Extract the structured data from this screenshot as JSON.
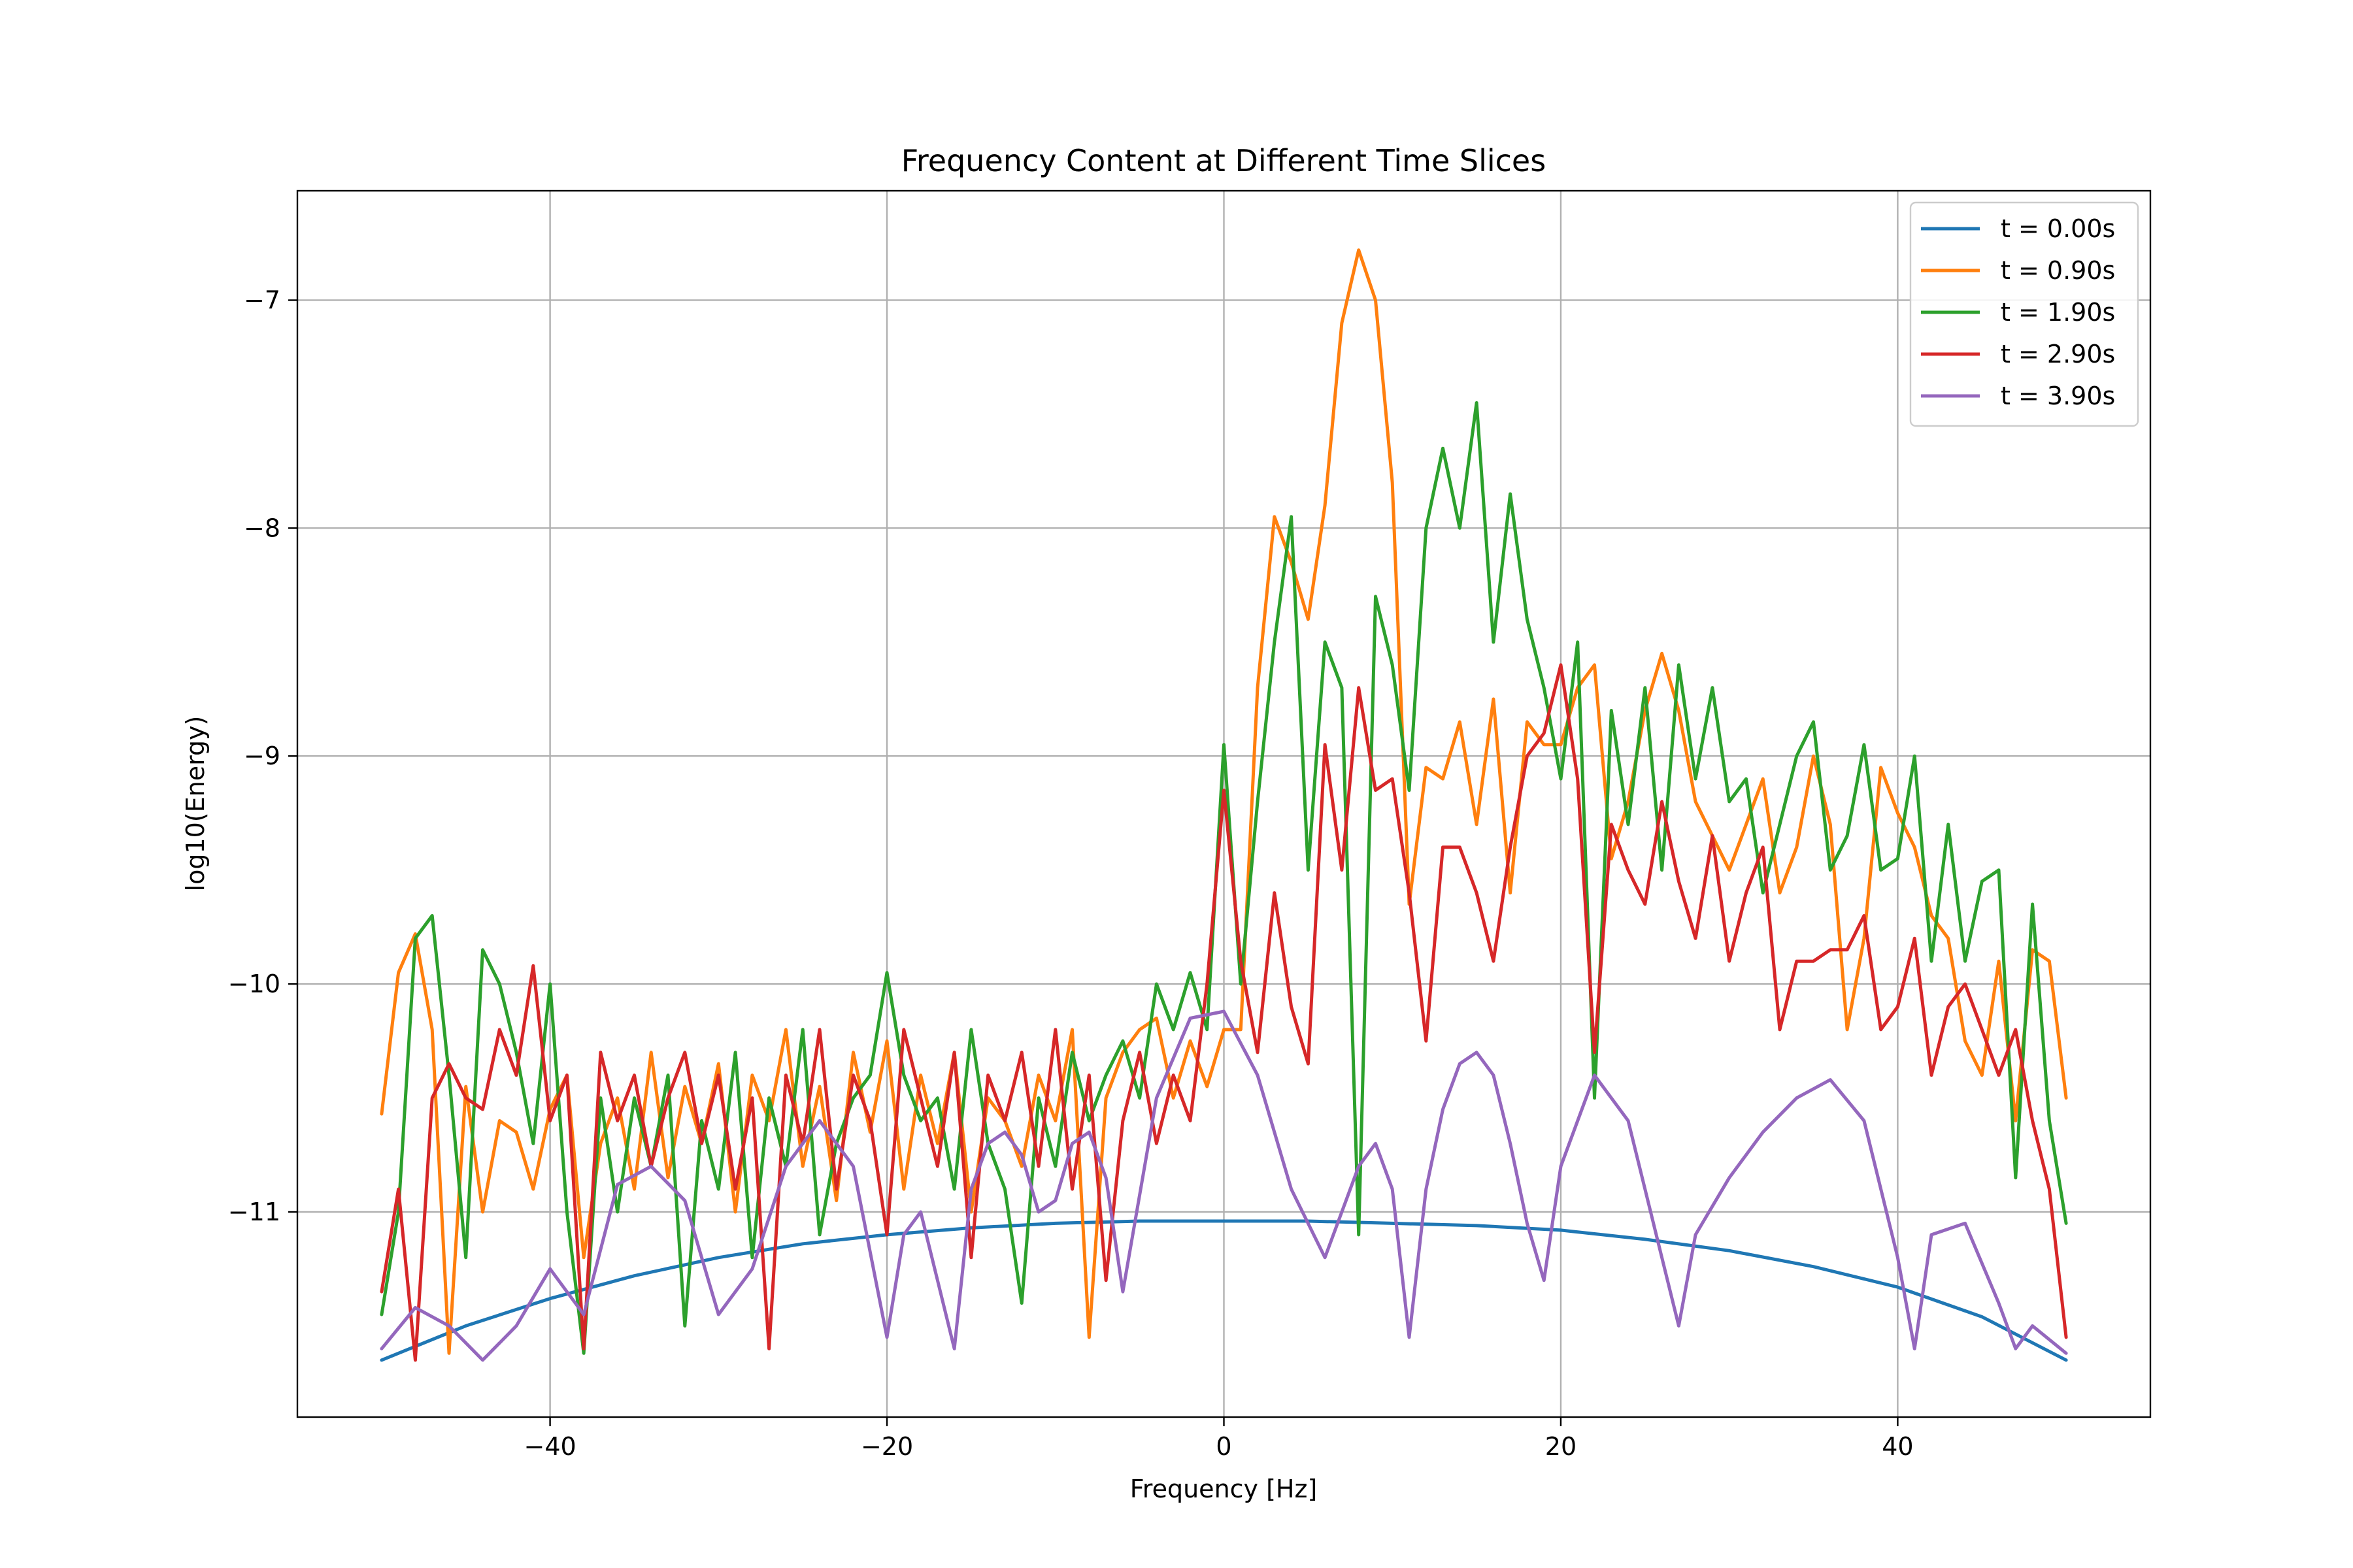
{
  "chart_data": {
    "type": "line",
    "title": "Frequency Content at Different Time Slices",
    "xlabel": "Frequency [Hz]",
    "ylabel": "log10(Energy)",
    "xlim": [
      -55,
      55
    ],
    "ylim": [
      -11.9,
      -6.52
    ],
    "xticks": [
      -40,
      -20,
      0,
      20,
      40
    ],
    "yticks": [
      -11,
      -10,
      -9,
      -8,
      -7
    ],
    "xtick_labels": [
      "−40",
      "−20",
      "0",
      "20",
      "40"
    ],
    "ytick_labels": [
      "−11",
      "−10",
      "−9",
      "−8",
      "−7"
    ],
    "grid": true,
    "legend_position": "top-right",
    "series": [
      {
        "name": "t = 0.00s",
        "color": "#1f77b4",
        "x": [
          -50,
          -45,
          -40,
          -35,
          -30,
          -25,
          -20,
          -15,
          -10,
          -5,
          0,
          5,
          10,
          15,
          20,
          25,
          30,
          35,
          40,
          45,
          50
        ],
        "y": [
          -11.65,
          -11.5,
          -11.38,
          -11.28,
          -11.2,
          -11.14,
          -11.1,
          -11.07,
          -11.05,
          -11.04,
          -11.04,
          -11.04,
          -11.05,
          -11.06,
          -11.08,
          -11.12,
          -11.17,
          -11.24,
          -11.33,
          -11.46,
          -11.65
        ]
      },
      {
        "name": "t = 0.90s",
        "color": "#ff7f0e",
        "x": [
          -50,
          -49,
          -48,
          -47,
          -46,
          -45,
          -44,
          -43,
          -42,
          -41,
          -40,
          -39,
          -38,
          -37,
          -36,
          -35,
          -34,
          -33,
          -32,
          -31,
          -30,
          -29,
          -28,
          -27,
          -26,
          -25,
          -24,
          -23,
          -22,
          -21,
          -20,
          -19,
          -18,
          -17,
          -16,
          -15,
          -14,
          -13,
          -12,
          -11,
          -10,
          -9,
          -8,
          -7,
          -6,
          -5,
          -4,
          -3,
          -2,
          -1,
          0,
          1,
          2,
          3,
          4,
          5,
          6,
          7,
          8,
          9,
          10,
          11,
          12,
          13,
          14,
          15,
          16,
          17,
          18,
          19,
          20,
          21,
          22,
          23,
          24,
          25,
          26,
          27,
          28,
          29,
          30,
          31,
          32,
          33,
          34,
          35,
          36,
          37,
          38,
          39,
          40,
          41,
          42,
          43,
          44,
          45,
          46,
          47,
          48,
          49,
          50
        ],
        "y": [
          -10.57,
          -9.95,
          -9.78,
          -10.2,
          -11.62,
          -10.45,
          -11.0,
          -10.6,
          -10.65,
          -10.9,
          -10.55,
          -10.4,
          -11.2,
          -10.7,
          -10.5,
          -10.9,
          -10.3,
          -10.85,
          -10.45,
          -10.7,
          -10.35,
          -11.0,
          -10.4,
          -10.6,
          -10.2,
          -10.8,
          -10.45,
          -10.95,
          -10.3,
          -10.65,
          -10.25,
          -10.9,
          -10.4,
          -10.7,
          -10.3,
          -11.0,
          -10.5,
          -10.6,
          -10.8,
          -10.4,
          -10.6,
          -10.2,
          -11.55,
          -10.5,
          -10.3,
          -10.2,
          -10.15,
          -10.5,
          -10.25,
          -10.45,
          -10.2,
          -10.2,
          -8.7,
          -7.95,
          -8.15,
          -8.4,
          -7.9,
          -7.1,
          -6.78,
          -7.0,
          -7.8,
          -9.65,
          -9.05,
          -9.1,
          -8.85,
          -9.3,
          -8.75,
          -9.6,
          -8.85,
          -8.95,
          -8.95,
          -8.7,
          -8.6,
          -9.45,
          -9.2,
          -8.8,
          -8.55,
          -8.8,
          -9.2,
          -9.35,
          -9.5,
          -9.3,
          -9.1,
          -9.6,
          -9.4,
          -9.0,
          -9.3,
          -10.2,
          -9.8,
          -9.05,
          -9.25,
          -9.4,
          -9.7,
          -9.8,
          -10.25,
          -10.4,
          -9.9,
          -10.6,
          -9.85,
          -9.9,
          -10.5
        ]
      },
      {
        "name": "t = 1.90s",
        "color": "#2ca02c",
        "x": [
          -50,
          -49,
          -48,
          -47,
          -46,
          -45,
          -44,
          -43,
          -42,
          -41,
          -40,
          -39,
          -38,
          -37,
          -36,
          -35,
          -34,
          -33,
          -32,
          -31,
          -30,
          -29,
          -28,
          -27,
          -26,
          -25,
          -24,
          -23,
          -22,
          -21,
          -20,
          -19,
          -18,
          -17,
          -16,
          -15,
          -14,
          -13,
          -12,
          -11,
          -10,
          -9,
          -8,
          -7,
          -6,
          -5,
          -4,
          -3,
          -2,
          -1,
          0,
          1,
          2,
          3,
          4,
          5,
          6,
          7,
          8,
          9,
          10,
          11,
          12,
          13,
          14,
          15,
          16,
          17,
          18,
          19,
          20,
          21,
          22,
          23,
          24,
          25,
          26,
          27,
          28,
          29,
          30,
          31,
          32,
          33,
          34,
          35,
          36,
          37,
          38,
          39,
          40,
          41,
          42,
          43,
          44,
          45,
          46,
          47,
          48,
          49,
          50
        ],
        "y": [
          -11.45,
          -11.0,
          -9.8,
          -9.7,
          -10.4,
          -11.2,
          -9.85,
          -10.0,
          -10.3,
          -10.7,
          -10.0,
          -11.0,
          -11.62,
          -10.5,
          -11.0,
          -10.5,
          -10.8,
          -10.4,
          -11.5,
          -10.6,
          -10.9,
          -10.3,
          -11.2,
          -10.5,
          -10.8,
          -10.2,
          -11.1,
          -10.7,
          -10.5,
          -10.4,
          -9.95,
          -10.4,
          -10.6,
          -10.5,
          -10.9,
          -10.2,
          -10.7,
          -10.9,
          -11.4,
          -10.5,
          -10.8,
          -10.3,
          -10.6,
          -10.4,
          -10.25,
          -10.5,
          -10.0,
          -10.2,
          -9.95,
          -10.2,
          -8.95,
          -10.0,
          -9.2,
          -8.5,
          -7.95,
          -9.5,
          -8.5,
          -8.7,
          -11.1,
          -8.3,
          -8.6,
          -9.15,
          -8.0,
          -7.65,
          -8.0,
          -7.45,
          -8.5,
          -7.85,
          -8.4,
          -8.7,
          -9.1,
          -8.5,
          -10.5,
          -8.8,
          -9.3,
          -8.7,
          -9.5,
          -8.6,
          -9.1,
          -8.7,
          -9.2,
          -9.1,
          -9.6,
          -9.3,
          -9.0,
          -8.85,
          -9.5,
          -9.35,
          -8.95,
          -9.5,
          -9.45,
          -9.0,
          -9.9,
          -9.3,
          -9.9,
          -9.55,
          -9.5,
          -10.85,
          -9.65,
          -10.6,
          -11.05
        ]
      },
      {
        "name": "t = 2.90s",
        "color": "#d62728",
        "x": [
          -50,
          -49,
          -48,
          -47,
          -46,
          -45,
          -44,
          -43,
          -42,
          -41,
          -40,
          -39,
          -38,
          -37,
          -36,
          -35,
          -34,
          -33,
          -32,
          -31,
          -30,
          -29,
          -28,
          -27,
          -26,
          -25,
          -24,
          -23,
          -22,
          -21,
          -20,
          -19,
          -18,
          -17,
          -16,
          -15,
          -14,
          -13,
          -12,
          -11,
          -10,
          -9,
          -8,
          -7,
          -6,
          -5,
          -4,
          -3,
          -2,
          -1,
          0,
          1,
          2,
          3,
          4,
          5,
          6,
          7,
          8,
          9,
          10,
          11,
          12,
          13,
          14,
          15,
          16,
          17,
          18,
          19,
          20,
          21,
          22,
          23,
          24,
          25,
          26,
          27,
          28,
          29,
          30,
          31,
          32,
          33,
          34,
          35,
          36,
          37,
          38,
          39,
          40,
          41,
          42,
          43,
          44,
          45,
          46,
          47,
          48,
          49,
          50
        ],
        "y": [
          -11.35,
          -10.9,
          -11.65,
          -10.5,
          -10.35,
          -10.5,
          -10.55,
          -10.2,
          -10.4,
          -9.92,
          -10.6,
          -10.4,
          -11.6,
          -10.3,
          -10.6,
          -10.4,
          -10.8,
          -10.5,
          -10.3,
          -10.7,
          -10.4,
          -10.9,
          -10.5,
          -11.6,
          -10.4,
          -10.7,
          -10.2,
          -10.9,
          -10.4,
          -10.6,
          -11.1,
          -10.2,
          -10.5,
          -10.8,
          -10.3,
          -11.2,
          -10.4,
          -10.6,
          -10.3,
          -10.8,
          -10.2,
          -10.9,
          -10.4,
          -11.3,
          -10.6,
          -10.3,
          -10.7,
          -10.4,
          -10.6,
          -10.0,
          -9.15,
          -9.9,
          -10.3,
          -9.6,
          -10.1,
          -10.35,
          -8.95,
          -9.5,
          -8.7,
          -9.15,
          -9.1,
          -9.6,
          -10.25,
          -9.4,
          -9.4,
          -9.6,
          -9.9,
          -9.4,
          -9.0,
          -8.9,
          -8.6,
          -9.1,
          -10.3,
          -9.3,
          -9.5,
          -9.65,
          -9.2,
          -9.55,
          -9.8,
          -9.35,
          -9.9,
          -9.6,
          -9.4,
          -10.2,
          -9.9,
          -9.9,
          -9.85,
          -9.85,
          -9.7,
          -10.2,
          -10.1,
          -9.8,
          -10.4,
          -10.1,
          -10.0,
          -10.2,
          -10.4,
          -10.2,
          -10.6,
          -10.9,
          -11.55
        ]
      },
      {
        "name": "t = 3.90s",
        "color": "#9467bd",
        "x": [
          -50,
          -48,
          -46,
          -44,
          -42,
          -40,
          -38,
          -36,
          -34,
          -32,
          -30,
          -28,
          -26,
          -24,
          -22,
          -20,
          -19,
          -18,
          -17,
          -16,
          -15,
          -14,
          -13,
          -12,
          -11,
          -10,
          -9,
          -8,
          -7,
          -6,
          -4,
          -2,
          0,
          2,
          4,
          6,
          8,
          9,
          10,
          11,
          12,
          13,
          14,
          15,
          16,
          17,
          18,
          19,
          20,
          22,
          24,
          26,
          27,
          28,
          30,
          32,
          34,
          36,
          38,
          40,
          41,
          42,
          44,
          46,
          47,
          48,
          50
        ],
        "y": [
          -11.6,
          -11.42,
          -11.5,
          -11.65,
          -11.5,
          -11.25,
          -11.45,
          -10.88,
          -10.8,
          -10.95,
          -11.45,
          -11.25,
          -10.8,
          -10.6,
          -10.8,
          -11.55,
          -11.1,
          -11.0,
          -11.3,
          -11.6,
          -10.9,
          -10.7,
          -10.65,
          -10.75,
          -11.0,
          -10.95,
          -10.7,
          -10.65,
          -10.85,
          -11.35,
          -10.5,
          -10.15,
          -10.12,
          -10.4,
          -10.9,
          -11.2,
          -10.8,
          -10.7,
          -10.9,
          -11.55,
          -10.9,
          -10.55,
          -10.35,
          -10.3,
          -10.4,
          -10.7,
          -11.05,
          -11.3,
          -10.8,
          -10.4,
          -10.6,
          -11.2,
          -11.5,
          -11.1,
          -10.85,
          -10.65,
          -10.5,
          -10.42,
          -10.6,
          -11.2,
          -11.6,
          -11.1,
          -11.05,
          -11.4,
          -11.6,
          -11.5,
          -11.62
        ]
      }
    ]
  }
}
